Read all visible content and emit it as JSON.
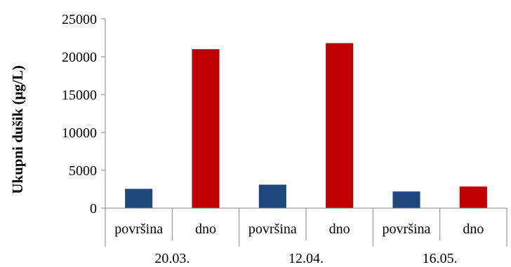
{
  "chart_data": {
    "type": "bar",
    "title": "",
    "xlabel": "",
    "ylabel": "Ukupni dušik (μg/L)",
    "ylim": [
      0,
      25000
    ],
    "yticks": [
      0,
      5000,
      10000,
      15000,
      20000,
      25000
    ],
    "grid": false,
    "legend": "none",
    "groups": [
      "20.03.",
      "12.04.",
      "16.05."
    ],
    "categories": [
      "površina",
      "dno",
      "površina",
      "dno",
      "površina",
      "dno"
    ],
    "values": [
      2550,
      21000,
      3100,
      21800,
      2200,
      2850
    ],
    "colors": {
      "površina": "#1f497d",
      "dno": "#c00000"
    }
  }
}
